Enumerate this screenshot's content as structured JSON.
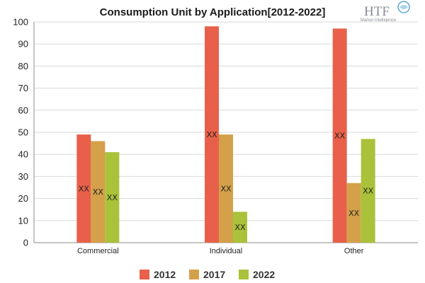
{
  "logo": {
    "main": "HTF",
    "sub": "Market Intelligence"
  },
  "chart_data": {
    "type": "bar",
    "title": "Consumption Unit by  Application[2012-2022]",
    "categories": [
      "Commercial",
      "Individual",
      "Other"
    ],
    "series": [
      {
        "name": "2012",
        "color": "#e8604a",
        "values": [
          49,
          98,
          97
        ],
        "labels": [
          "XX",
          "XX",
          "XX"
        ]
      },
      {
        "name": "2017",
        "color": "#d4a04a",
        "values": [
          46,
          49,
          27
        ],
        "labels": [
          "XX",
          "XX",
          "XX"
        ]
      },
      {
        "name": "2022",
        "color": "#a9c23a",
        "values": [
          41,
          14,
          47
        ],
        "labels": [
          "XX",
          "XX",
          "XX"
        ]
      }
    ],
    "xlabel": "",
    "ylabel": "",
    "ylim": [
      0,
      100
    ],
    "yticks": [
      0,
      10,
      20,
      30,
      40,
      50,
      60,
      70,
      80,
      90,
      100
    ],
    "grid": true,
    "legend_position": "bottom"
  }
}
